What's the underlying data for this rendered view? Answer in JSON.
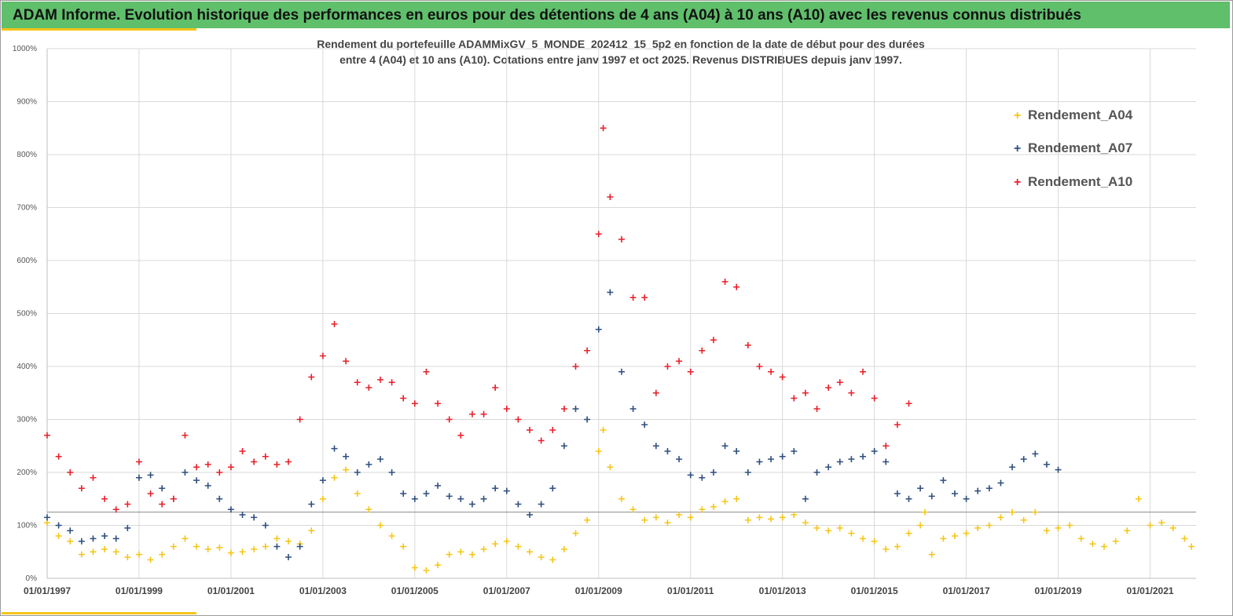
{
  "banner": {
    "title": "ADAM Informe. Evolution historique des performances en euros pour des détentions de 4 ans (A04) à 10 ans (A10) avec les revenus connus distribués"
  },
  "chart_data": {
    "type": "scatter",
    "title_line1": "Rendement du portefeuille ADAMMixGV_5_MONDE_202412_15_5p2 en fonction de la date de début pour des durées",
    "title_line2": "entre 4 (A04) et 10 ans (A10). Cotations entre janv 1997 et oct 2025. Revenus DISTRIBUES depuis janv 1997.",
    "xlabel": "",
    "ylabel": "",
    "xlim": [
      1997.0,
      2022.0
    ],
    "ylim": [
      0,
      1000
    ],
    "y_ticks": [
      0,
      100,
      200,
      300,
      400,
      500,
      600,
      700,
      800,
      900,
      1000
    ],
    "y_tick_labels": [
      "0%",
      "100%",
      "200%",
      "300%",
      "400%",
      "500%",
      "600%",
      "700%",
      "800%",
      "900%",
      "1000%"
    ],
    "x_ticks": [
      1997,
      1999,
      2001,
      2003,
      2005,
      2007,
      2009,
      2011,
      2013,
      2015,
      2017,
      2019,
      2021
    ],
    "x_tick_labels": [
      "01/01/1997",
      "01/01/1999",
      "01/01/2001",
      "01/01/2003",
      "01/01/2005",
      "01/01/2007",
      "01/01/2009",
      "01/01/2011",
      "01/01/2013",
      "01/01/2015",
      "01/01/2017",
      "01/01/2019",
      "01/01/2021"
    ],
    "reference_line_y": 125,
    "grid": true,
    "legend_position": "top-right",
    "series": [
      {
        "name": "Rendement_A04",
        "color": "#f5c518",
        "x": [
          1997.0,
          1997.25,
          1997.5,
          1997.75,
          1998.0,
          1998.25,
          1998.5,
          1998.75,
          1999.0,
          1999.25,
          1999.5,
          1999.75,
          2000.0,
          2000.25,
          2000.5,
          2000.75,
          2001.0,
          2001.25,
          2001.5,
          2001.75,
          2002.0,
          2002.25,
          2002.5,
          2002.75,
          2003.0,
          2003.25,
          2003.5,
          2003.75,
          2004.0,
          2004.25,
          2004.5,
          2004.75,
          2005.0,
          2005.25,
          2005.5,
          2005.75,
          2006.0,
          2006.25,
          2006.5,
          2006.75,
          2007.0,
          2007.25,
          2007.5,
          2007.75,
          2008.0,
          2008.25,
          2008.5,
          2008.75,
          2009.0,
          2009.1,
          2009.25,
          2009.5,
          2009.75,
          2010.0,
          2010.25,
          2010.5,
          2010.75,
          2011.0,
          2011.25,
          2011.5,
          2011.75,
          2012.0,
          2012.25,
          2012.5,
          2012.75,
          2013.0,
          2013.25,
          2013.5,
          2013.75,
          2014.0,
          2014.25,
          2014.5,
          2014.75,
          2015.0,
          2015.25,
          2015.5,
          2015.75,
          2016.0,
          2016.1,
          2016.25,
          2016.5,
          2016.75,
          2017.0,
          2017.25,
          2017.5,
          2017.75,
          2018.0,
          2018.25,
          2018.5,
          2018.75,
          2019.0,
          2019.25,
          2019.5,
          2019.75,
          2020.0,
          2020.25,
          2020.5,
          2020.75,
          2021.0,
          2021.25,
          2021.5,
          2021.75,
          2021.9
        ],
        "y": [
          105,
          80,
          70,
          45,
          50,
          55,
          50,
          40,
          45,
          35,
          45,
          60,
          75,
          60,
          55,
          58,
          48,
          50,
          55,
          60,
          75,
          70,
          65,
          90,
          150,
          190,
          205,
          160,
          130,
          100,
          80,
          60,
          20,
          15,
          25,
          45,
          50,
          45,
          55,
          65,
          70,
          60,
          50,
          40,
          35,
          55,
          85,
          110,
          240,
          280,
          210,
          150,
          130,
          110,
          115,
          105,
          120,
          115,
          130,
          135,
          145,
          150,
          110,
          115,
          112,
          115,
          120,
          105,
          95,
          90,
          95,
          85,
          75,
          70,
          55,
          60,
          85,
          100,
          125,
          45,
          75,
          80,
          85,
          95,
          100,
          115,
          125,
          110,
          125,
          90,
          95,
          100,
          75,
          65,
          60,
          70,
          90,
          150,
          100,
          105,
          95,
          75,
          60
        ]
      },
      {
        "name": "Rendement_A07",
        "color": "#2f4f7f",
        "x": [
          1997.0,
          1997.25,
          1997.5,
          1997.75,
          1998.0,
          1998.25,
          1998.5,
          1998.75,
          1999.0,
          1999.25,
          1999.5,
          1999.75,
          2000.0,
          2000.25,
          2000.5,
          2000.75,
          2001.0,
          2001.25,
          2001.5,
          2001.75,
          2002.0,
          2002.25,
          2002.5,
          2002.75,
          2003.0,
          2003.25,
          2003.5,
          2003.75,
          2004.0,
          2004.25,
          2004.5,
          2004.75,
          2005.0,
          2005.25,
          2005.5,
          2005.75,
          2006.0,
          2006.25,
          2006.5,
          2006.75,
          2007.0,
          2007.25,
          2007.5,
          2007.75,
          2008.0,
          2008.25,
          2008.5,
          2008.75,
          2009.0,
          2009.25,
          2009.5,
          2009.75,
          2010.0,
          2010.25,
          2010.5,
          2010.75,
          2011.0,
          2011.25,
          2011.5,
          2011.75,
          2012.0,
          2012.25,
          2012.5,
          2012.75,
          2013.0,
          2013.25,
          2013.5,
          2013.75,
          2014.0,
          2014.25,
          2014.5,
          2014.75,
          2015.0,
          2015.25,
          2015.5,
          2015.75,
          2016.0,
          2016.25,
          2016.5,
          2016.75,
          2017.0,
          2017.25,
          2017.5,
          2017.75,
          2018.0,
          2018.25,
          2018.5,
          2018.75,
          2019.0
        ],
        "y": [
          115,
          100,
          90,
          70,
          75,
          80,
          75,
          95,
          190,
          195,
          170,
          150,
          200,
          185,
          175,
          150,
          130,
          120,
          115,
          100,
          60,
          40,
          60,
          140,
          185,
          245,
          230,
          200,
          215,
          225,
          200,
          160,
          150,
          160,
          175,
          155,
          150,
          140,
          150,
          170,
          165,
          140,
          120,
          140,
          170,
          250,
          320,
          300,
          470,
          540,
          390,
          320,
          290,
          250,
          240,
          225,
          195,
          190,
          200,
          250,
          240,
          200,
          220,
          225,
          230,
          240,
          150,
          200,
          210,
          220,
          225,
          230,
          240,
          220,
          160,
          150,
          170,
          155,
          185,
          160,
          150,
          165,
          170,
          180,
          210,
          225,
          235,
          215,
          205
        ]
      },
      {
        "name": "Rendement_A10",
        "color": "#e8202a",
        "x": [
          1997.0,
          1997.25,
          1997.5,
          1997.75,
          1998.0,
          1998.25,
          1998.5,
          1998.75,
          1999.0,
          1999.25,
          1999.5,
          1999.75,
          2000.0,
          2000.25,
          2000.5,
          2000.75,
          2001.0,
          2001.25,
          2001.5,
          2001.75,
          2002.0,
          2002.25,
          2002.5,
          2002.75,
          2003.0,
          2003.25,
          2003.5,
          2003.75,
          2004.0,
          2004.25,
          2004.5,
          2004.75,
          2005.0,
          2005.25,
          2005.5,
          2005.75,
          2006.0,
          2006.25,
          2006.5,
          2006.75,
          2007.0,
          2007.25,
          2007.5,
          2007.75,
          2008.0,
          2008.25,
          2008.5,
          2008.75,
          2009.0,
          2009.1,
          2009.25,
          2009.5,
          2009.75,
          2010.0,
          2010.25,
          2010.5,
          2010.75,
          2011.0,
          2011.25,
          2011.5,
          2011.75,
          2012.0,
          2012.25,
          2012.5,
          2012.75,
          2013.0,
          2013.25,
          2013.5,
          2013.75,
          2014.0,
          2014.25,
          2014.5,
          2014.75,
          2015.0,
          2015.25,
          2015.5,
          2015.75
        ],
        "y": [
          270,
          230,
          200,
          170,
          190,
          150,
          130,
          140,
          220,
          160,
          140,
          150,
          270,
          210,
          215,
          200,
          210,
          240,
          220,
          230,
          215,
          220,
          300,
          380,
          420,
          480,
          410,
          370,
          360,
          375,
          370,
          340,
          330,
          390,
          330,
          300,
          270,
          310,
          310,
          360,
          320,
          300,
          280,
          260,
          280,
          320,
          400,
          430,
          650,
          850,
          720,
          640,
          530,
          530,
          350,
          400,
          410,
          390,
          430,
          450,
          560,
          550,
          440,
          400,
          390,
          380,
          340,
          350,
          320,
          360,
          370,
          350,
          390,
          340,
          250,
          290,
          330
        ]
      }
    ]
  },
  "legend": {
    "items": [
      "Rendement_A04",
      "Rendement_A07",
      "Rendement_A10"
    ],
    "marker": "+"
  }
}
